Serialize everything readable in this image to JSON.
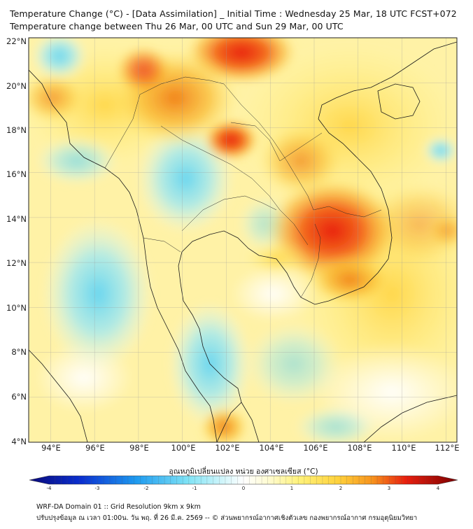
{
  "header": {
    "title": "Temperature Change (°C) - [Data Assimilation] _ Initial Time : Wednesday 25 Mar, 18 UTC FCST+072",
    "subtitle": "Temperature change between Thu 26 Mar, 00 UTC and Sun 29 Mar, 00 UTC"
  },
  "map": {
    "lat_labels": [
      "22°N",
      "20°N",
      "18°N",
      "16°N",
      "14°N",
      "12°N",
      "10°N",
      "8°N",
      "6°N",
      "4°N"
    ],
    "lon_labels": [
      "94°E",
      "96°E",
      "98°E",
      "100°E",
      "102°E",
      "104°E",
      "106°E",
      "108°E",
      "110°E",
      "112°E"
    ],
    "lat_range": [
      4,
      22
    ],
    "lon_range": [
      93,
      112.5
    ],
    "gridlines": true,
    "hotspots": [
      {
        "name": "cambodia-east",
        "lat": 13.2,
        "lon": 106.8,
        "value": 3.0
      },
      {
        "name": "north-laos-china",
        "lat": 21.7,
        "lon": 103.0,
        "value": 2.8
      },
      {
        "name": "north-thailand-laos",
        "lat": 17.8,
        "lon": 102.0,
        "value": 2.5
      },
      {
        "name": "north-myanmar",
        "lat": 20.8,
        "lon": 98.2,
        "value": 2.2
      },
      {
        "name": "south-vietnam",
        "lat": 10.8,
        "lon": 107.3,
        "value": 2.0
      },
      {
        "name": "malaysia",
        "lat": 5.0,
        "lon": 101.8,
        "value": 2.0
      }
    ],
    "coldspots": [
      {
        "name": "central-thailand",
        "lat": 16.0,
        "lon": 100.5,
        "value": -1.3
      },
      {
        "name": "andaman-north",
        "lat": 21.0,
        "lon": 94.5,
        "value": -1.2
      },
      {
        "name": "andaman-sea",
        "lat": 10.0,
        "lon": 97.0,
        "value": -1.0
      },
      {
        "name": "gulf-of-thailand-south",
        "lat": 7.5,
        "lon": 100.8,
        "value": -1.1
      }
    ]
  },
  "colorbar": {
    "label": "อุณหภูมิเปลี่ยนแปลง หน่วย องศาเซลเซียส (°C)",
    "ticks": [
      "-4",
      "-3",
      "-2",
      "-1",
      "0",
      "1",
      "2",
      "3",
      "4"
    ],
    "range": [
      -4,
      4
    ],
    "colors": {
      "cold_end": "#0a0a7a",
      "cold_mid": "#1e9bf0",
      "light_cyan": "#7fe3f5",
      "zero": "#ffffff",
      "yellow": "#fff27a",
      "orange": "#f7941d",
      "red": "#e81e0e",
      "hot_end": "#7a0000"
    }
  },
  "footer": {
    "line1": "WRF-DA Domain 01 :: Grid Resolution 9km x 9km",
    "line2": "ปรับปรุงข้อมูล ณ เวลา 01:00น. วัน พฤ. ที่ 26 มี.ค. 2569 -- © ส่วนพยากรณ์อากาศเชิงตัวเลข กองพยากรณ์อากาศ กรมอุตุนิยมวิทยา"
  }
}
